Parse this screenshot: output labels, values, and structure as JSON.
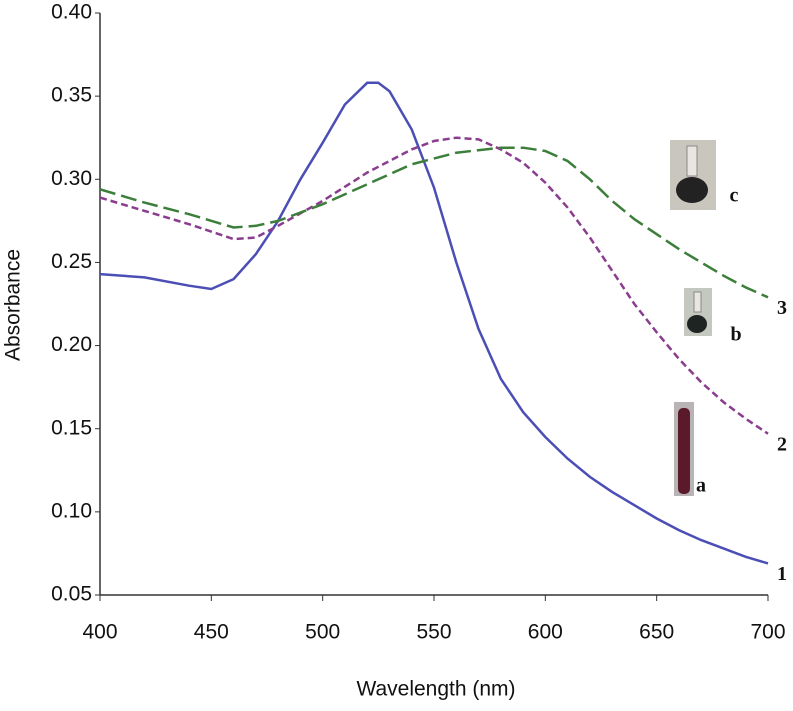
{
  "chart_data": {
    "type": "line",
    "x_label": "Wavelength (nm)",
    "y_label": "Absorbance",
    "xlim": [
      400,
      700
    ],
    "xticks": [
      400,
      450,
      500,
      550,
      600,
      650,
      700
    ],
    "ylim": [
      0.05,
      0.4
    ],
    "yticks": [
      {
        "value": 0.05,
        "label": "0.05"
      },
      {
        "value": 0.1,
        "label": "0.10"
      },
      0.15,
      {
        "value": 0.2,
        "label": "0.20"
      },
      0.25,
      {
        "value": 0.3,
        "label": "0.30"
      },
      0.35,
      {
        "value": 0.4,
        "label": "0.40"
      }
    ],
    "grid": false,
    "annotations": [
      "a",
      "b",
      "c"
    ],
    "series": [
      {
        "name": "1",
        "color": "#4b4fb5",
        "dash": "solid",
        "x": [
          400,
          420,
          440,
          450,
          460,
          470,
          480,
          490,
          500,
          510,
          520,
          525,
          530,
          540,
          550,
          560,
          570,
          580,
          590,
          600,
          610,
          620,
          630,
          640,
          650,
          660,
          670,
          680,
          690,
          700
        ],
        "values": [
          0.243,
          0.241,
          0.236,
          0.234,
          0.24,
          0.255,
          0.275,
          0.3,
          0.322,
          0.345,
          0.358,
          0.358,
          0.353,
          0.33,
          0.295,
          0.25,
          0.21,
          0.18,
          0.16,
          0.145,
          0.132,
          0.121,
          0.112,
          0.104,
          0.096,
          0.089,
          0.083,
          0.078,
          0.073,
          0.069
        ]
      },
      {
        "name": "2",
        "color": "#8a3d8f",
        "dash": "short",
        "x": [
          400,
          420,
          440,
          460,
          470,
          480,
          500,
          520,
          540,
          550,
          560,
          570,
          580,
          590,
          600,
          610,
          620,
          630,
          640,
          650,
          660,
          670,
          680,
          690,
          700
        ],
        "values": [
          0.289,
          0.281,
          0.273,
          0.264,
          0.265,
          0.272,
          0.287,
          0.304,
          0.318,
          0.323,
          0.325,
          0.324,
          0.318,
          0.31,
          0.298,
          0.283,
          0.265,
          0.245,
          0.225,
          0.208,
          0.192,
          0.178,
          0.166,
          0.156,
          0.147
        ]
      },
      {
        "name": "3",
        "color": "#3c7f3a",
        "dash": "long",
        "x": [
          400,
          420,
          440,
          460,
          470,
          480,
          500,
          520,
          540,
          560,
          580,
          590,
          600,
          610,
          620,
          630,
          640,
          650,
          660,
          670,
          680,
          690,
          700
        ],
        "values": [
          0.294,
          0.286,
          0.279,
          0.271,
          0.272,
          0.275,
          0.285,
          0.297,
          0.309,
          0.316,
          0.319,
          0.319,
          0.317,
          0.311,
          0.3,
          0.287,
          0.276,
          0.267,
          0.258,
          0.25,
          0.242,
          0.235,
          0.229
        ]
      }
    ]
  }
}
